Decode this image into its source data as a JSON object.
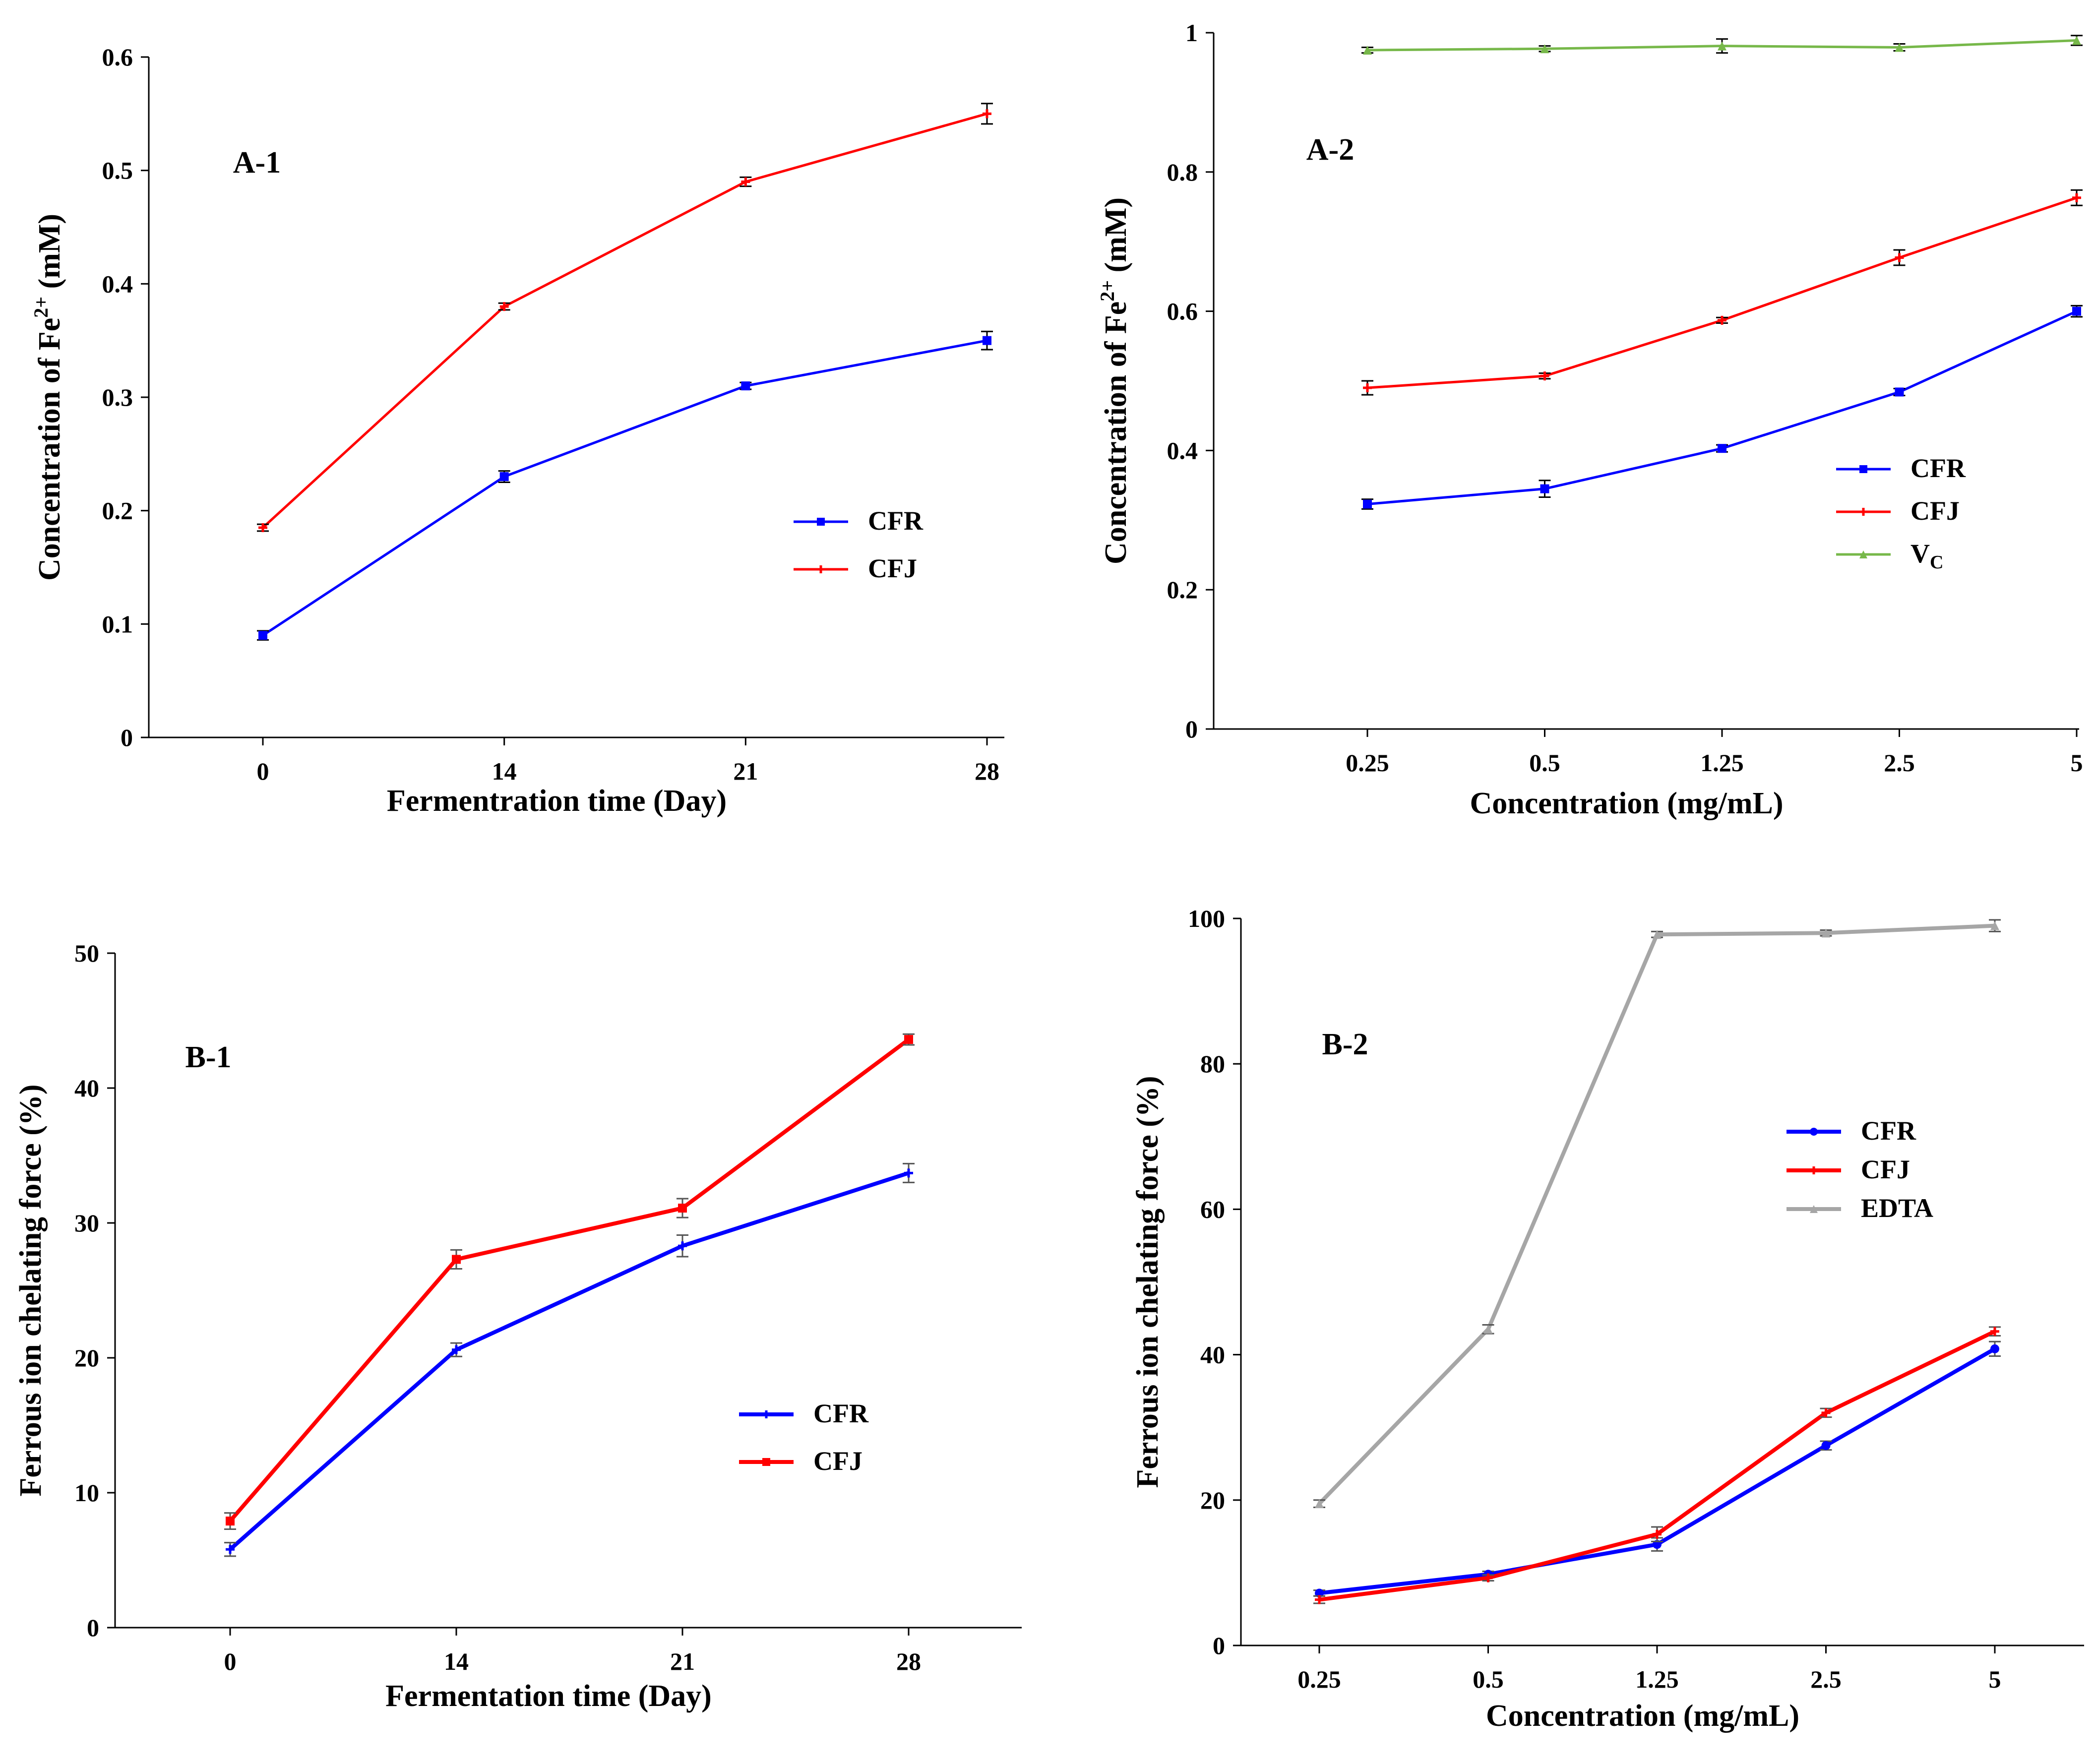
{
  "chart_data": [
    {
      "id": "A-1",
      "type": "line",
      "panel_label": "A-1",
      "xlabel": "Fermentration time (Day)",
      "ylabel": "Concentration of Fe",
      "ylabel_sup": "2+",
      "ylabel_unit": " (mM)",
      "categories": [
        "0",
        "14",
        "21",
        "28"
      ],
      "ylim": [
        0,
        0.6
      ],
      "yticks": [
        "0",
        "0.1",
        "0.2",
        "0.3",
        "0.4",
        "0.5",
        "0.6"
      ],
      "ytick_values": [
        0,
        0.1,
        0.2,
        0.3,
        0.4,
        0.5,
        0.6
      ],
      "legend_position": "center-right",
      "series": [
        {
          "name": "CFR",
          "color": "#0000ff",
          "marker": "square",
          "values": [
            0.09,
            0.23,
            0.31,
            0.35
          ],
          "errors": [
            0.004,
            0.005,
            0.003,
            0.008
          ]
        },
        {
          "name": "CFJ",
          "color": "#ff0000",
          "marker": "cross",
          "values": [
            0.185,
            0.38,
            0.49,
            0.55
          ],
          "errors": [
            0.003,
            0.003,
            0.004,
            0.009
          ]
        }
      ]
    },
    {
      "id": "A-2",
      "type": "line",
      "panel_label": "A-2",
      "xlabel": "Concentration (mg/mL)",
      "ylabel": "Concentration of Fe",
      "ylabel_sup": "2+",
      "ylabel_unit": " (mM)",
      "categories": [
        "0.25",
        "0.5",
        "1.25",
        "2.5",
        "5"
      ],
      "ylim": [
        0,
        1
      ],
      "yticks": [
        "0",
        "0.2",
        "0.4",
        "0.6",
        "0.8",
        "1"
      ],
      "ytick_values": [
        0,
        0.2,
        0.4,
        0.6,
        0.8,
        1
      ],
      "legend_position": "center-right",
      "series": [
        {
          "name": "CFR",
          "color": "#0000ff",
          "marker": "square",
          "values": [
            0.323,
            0.345,
            0.403,
            0.484,
            0.6
          ],
          "errors": [
            0.007,
            0.012,
            0.005,
            0.005,
            0.008
          ]
        },
        {
          "name": "CFJ",
          "color": "#ff0000",
          "marker": "cross",
          "values": [
            0.49,
            0.507,
            0.587,
            0.677,
            0.763
          ],
          "errors": [
            0.01,
            0.004,
            0.004,
            0.011,
            0.011
          ]
        },
        {
          "name": "V",
          "name_sub": "C",
          "color": "#77b84a",
          "marker": "triangle",
          "values": [
            0.975,
            0.977,
            0.981,
            0.979,
            0.989
          ],
          "errors": [
            0.004,
            0.004,
            0.01,
            0.005,
            0.007
          ]
        }
      ]
    },
    {
      "id": "B-1",
      "type": "line",
      "panel_label": "B-1",
      "xlabel": "Fermentation time (Day)",
      "ylabel": "Ferrous  ion chelating force (%)",
      "categories": [
        "0",
        "14",
        "21",
        "28"
      ],
      "ylim": [
        0,
        50
      ],
      "yticks": [
        "0",
        "10",
        "20",
        "30",
        "40",
        "50"
      ],
      "ytick_values": [
        0,
        10,
        20,
        30,
        40,
        50
      ],
      "legend_position": "center-right",
      "series": [
        {
          "name": "CFR",
          "color": "#0000ff",
          "marker": "cross",
          "values": [
            5.8,
            20.6,
            28.3,
            33.7
          ],
          "errors": [
            0.5,
            0.5,
            0.8,
            0.7
          ]
        },
        {
          "name": "CFJ",
          "color": "#ff0000",
          "marker": "square",
          "values": [
            7.9,
            27.3,
            31.1,
            43.6
          ],
          "errors": [
            0.6,
            0.7,
            0.7,
            0.4
          ]
        }
      ]
    },
    {
      "id": "B-2",
      "type": "line",
      "panel_label": "B-2",
      "xlabel": "Concentration  (mg/mL)",
      "ylabel": "Ferrous  ion chelating force (%)",
      "categories": [
        "0.25",
        "0.5",
        "1.25",
        "2.5",
        "5"
      ],
      "ylim": [
        0,
        100
      ],
      "yticks": [
        "0",
        "20",
        "40",
        "60",
        "80",
        "100"
      ],
      "ytick_values": [
        0,
        20,
        40,
        60,
        80,
        100
      ],
      "legend_position": "center-right",
      "series": [
        {
          "name": "CFR",
          "color": "#0000ff",
          "marker": "circle",
          "values": [
            7.2,
            9.8,
            13.9,
            27.5,
            40.8
          ],
          "errors": [
            0.4,
            0.4,
            0.9,
            0.6,
            1.0
          ]
        },
        {
          "name": "CFJ",
          "color": "#ff0000",
          "marker": "cross",
          "values": [
            6.3,
            9.3,
            15.3,
            32.0,
            43.2
          ],
          "errors": [
            0.5,
            0.4,
            1.0,
            0.6,
            0.6
          ]
        },
        {
          "name": "EDTA",
          "color": "#a6a6a6",
          "marker": "triangle",
          "values": [
            19.5,
            43.5,
            97.8,
            98.0,
            99.0
          ],
          "errors": [
            0.5,
            0.6,
            0.4,
            0.4,
            0.8
          ]
        }
      ]
    }
  ]
}
